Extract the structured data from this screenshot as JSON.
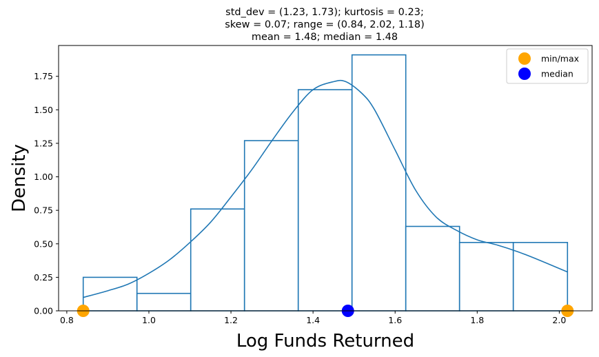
{
  "chart_data": {
    "type": "bar",
    "title_lines": [
      "std_dev = (1.23, 1.73); kurtosis = 0.23;",
      "skew = 0.07; range = (0.84, 2.02, 1.18)",
      "mean = 1.48; median = 1.48"
    ],
    "xlabel": "Log Funds Returned",
    "ylabel": "Density",
    "xlim": [
      0.78,
      2.08
    ],
    "ylim": [
      0,
      1.98
    ],
    "xticks": [
      0.8,
      1.0,
      1.2,
      1.4,
      1.6,
      1.8,
      2.0
    ],
    "xtick_labels": [
      "0.8",
      "1.0",
      "1.2",
      "1.4",
      "1.6",
      "1.8",
      "2.0"
    ],
    "yticks": [
      0.0,
      0.25,
      0.5,
      0.75,
      1.0,
      1.25,
      1.5,
      1.75
    ],
    "ytick_labels": [
      "0.00",
      "0.25",
      "0.50",
      "0.75",
      "1.00",
      "1.25",
      "1.50",
      "1.75"
    ],
    "histogram": {
      "bin_edges": [
        0.84,
        0.971,
        1.102,
        1.233,
        1.364,
        1.495,
        1.626,
        1.757,
        1.888,
        2.02
      ],
      "density": [
        0.25,
        0.13,
        0.76,
        1.27,
        1.65,
        1.91,
        0.63,
        0.51,
        0.51
      ],
      "color": "#1f77b4"
    },
    "kde": {
      "x": [
        0.84,
        0.9,
        0.95,
        1.0,
        1.05,
        1.1,
        1.15,
        1.2,
        1.25,
        1.3,
        1.35,
        1.4,
        1.45,
        1.48,
        1.52,
        1.55,
        1.6,
        1.65,
        1.7,
        1.75,
        1.8,
        1.85,
        1.9,
        1.95,
        2.02
      ],
      "y": [
        0.1,
        0.15,
        0.2,
        0.28,
        0.38,
        0.51,
        0.66,
        0.85,
        1.05,
        1.27,
        1.48,
        1.65,
        1.71,
        1.71,
        1.62,
        1.5,
        1.2,
        0.9,
        0.7,
        0.6,
        0.53,
        0.49,
        0.44,
        0.38,
        0.29
      ],
      "color": "#1f77b4"
    },
    "markers": [
      {
        "name": "min/max",
        "points": [
          [
            0.84,
            0.0
          ],
          [
            2.02,
            0.0
          ]
        ],
        "color": "#ffa500"
      },
      {
        "name": "median",
        "points": [
          [
            1.485,
            0.0
          ]
        ],
        "color": "#0000ff"
      }
    ],
    "legend": {
      "placement": "top-right",
      "entries": [
        {
          "label": "min/max",
          "color": "#ffa500"
        },
        {
          "label": "median",
          "color": "#0000ff"
        }
      ]
    },
    "grid": false
  }
}
